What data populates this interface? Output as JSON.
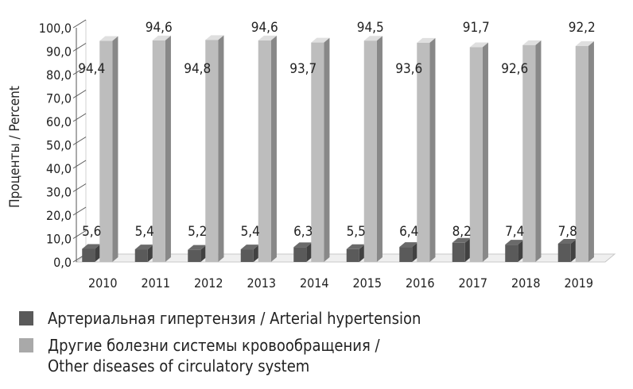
{
  "chart_data": {
    "type": "bar",
    "ylabel": "Проценты / Percent",
    "ylim": [
      0,
      100
    ],
    "yticks": [
      "0,0",
      "10,0",
      "20,0",
      "30,0",
      "40,0",
      "50,0",
      "60,0",
      "70,0",
      "80,0",
      "90,0",
      "100,0"
    ],
    "categories": [
      "2010",
      "2011",
      "2012",
      "2013",
      "2014",
      "2015",
      "2016",
      "2017",
      "2018",
      "2019"
    ],
    "series": [
      {
        "name": "Артериальная гипертензия / Arterial hypertension",
        "color": "#5a5a5a",
        "values": [
          5.6,
          5.4,
          5.2,
          5.4,
          6.3,
          5.5,
          6.4,
          8.2,
          7.4,
          7.8
        ],
        "labels": [
          "5,6",
          "5,4",
          "5,2",
          "5,4",
          "6,3",
          "5,5",
          "6,4",
          "8,2",
          "7,4",
          "7,8"
        ]
      },
      {
        "name": "Другие болезни системы кровообращения / Other diseases of circulatory system",
        "color": "#bdbdbd",
        "values": [
          94.4,
          94.6,
          94.8,
          94.6,
          93.7,
          94.5,
          93.6,
          91.7,
          92.6,
          92.2
        ],
        "labels": [
          "94,4",
          "94,6",
          "94,8",
          "94,6",
          "93,7",
          "94,5",
          "93,6",
          "91,7",
          "92,6",
          "92,2"
        ]
      }
    ],
    "legend_position": "bottom",
    "grid": false
  },
  "legend": {
    "items": [
      {
        "lines": [
          "Артериальная гипертензия / Arterial hypertension"
        ],
        "color": "#5a5a5a"
      },
      {
        "lines": [
          "Другие болезни системы кровообращения /",
          "Other diseases of circulatory system"
        ],
        "color": "#a9a9a9"
      }
    ]
  }
}
